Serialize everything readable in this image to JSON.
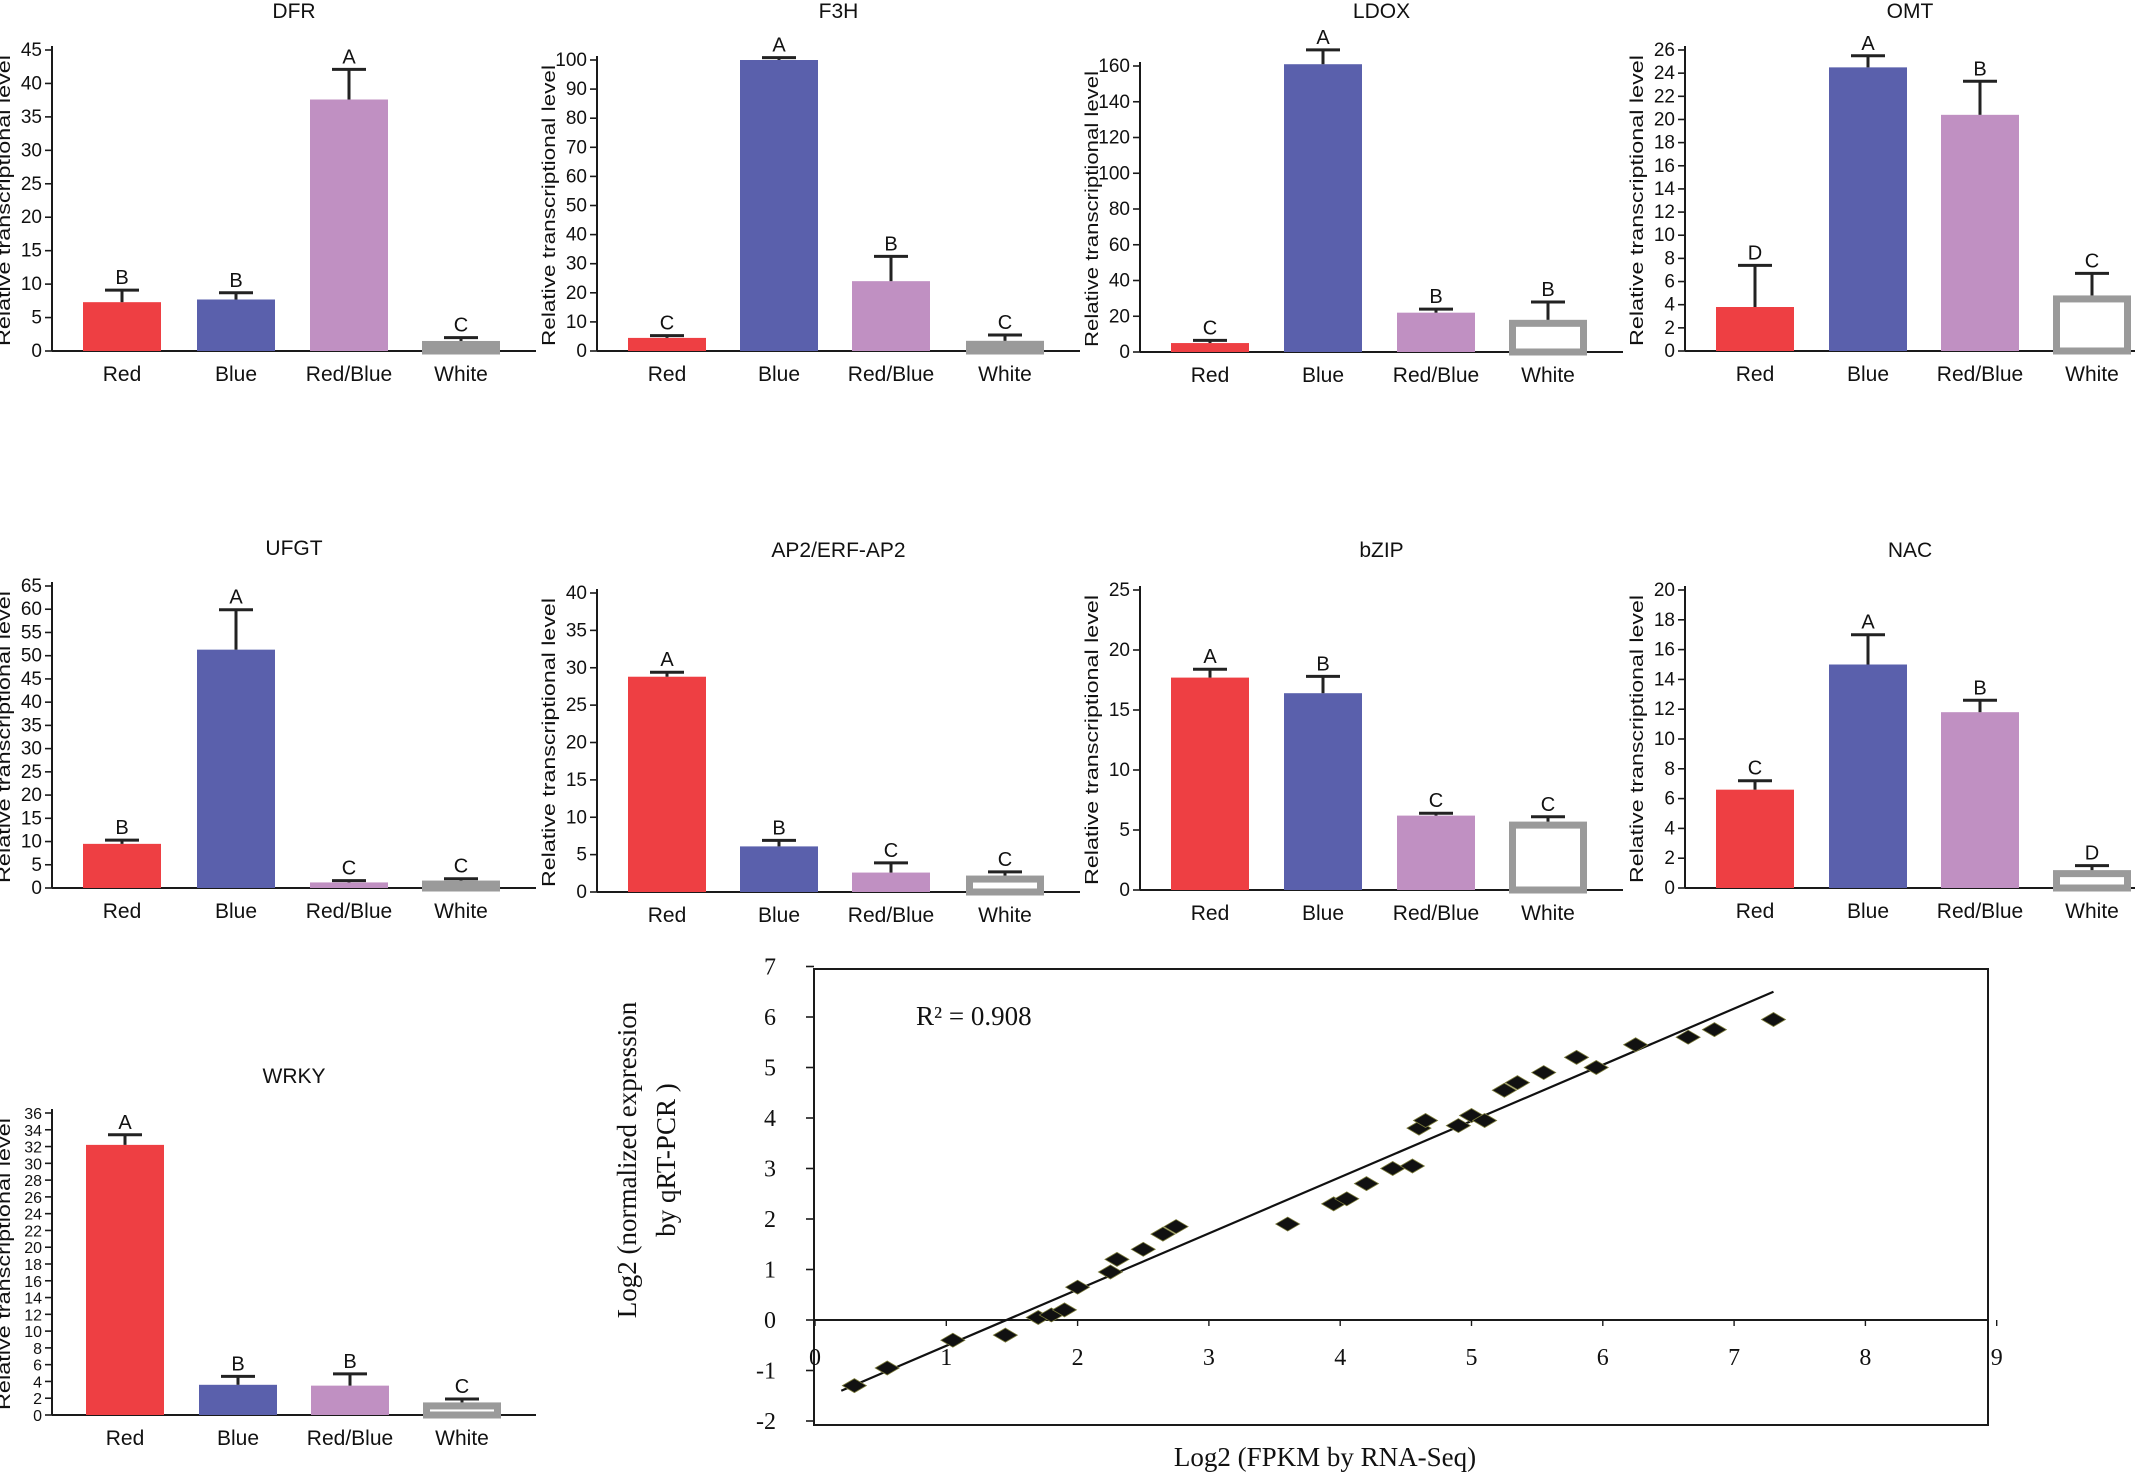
{
  "chart_data": [
    {
      "type": "bar",
      "title": "DFR",
      "ylabel": "Relative transcriptional level",
      "categories": [
        "Red",
        "Blue",
        "Red/Blue",
        "White"
      ],
      "values": [
        7.3,
        7.7,
        37.6,
        1.5
      ],
      "errors": [
        1.8,
        1.0,
        4.5,
        0.5
      ],
      "letters": [
        "B",
        "B",
        "A",
        "C"
      ],
      "ylim": [
        0,
        45
      ],
      "yticks": [
        0,
        5,
        10,
        15,
        20,
        25,
        30,
        35,
        40,
        45
      ]
    },
    {
      "type": "bar",
      "title": "F3H",
      "ylabel": "Relative transcriptional level",
      "categories": [
        "Red",
        "Blue",
        "Red/Blue",
        "White"
      ],
      "values": [
        4.5,
        100,
        24,
        3.5
      ],
      "errors": [
        0.8,
        0.8,
        8.5,
        2.0
      ],
      "letters": [
        "C",
        "A",
        "B",
        "C"
      ],
      "ylim": [
        0,
        105
      ],
      "yticks": [
        0,
        10,
        20,
        30,
        40,
        50,
        60,
        70,
        80,
        90,
        100
      ]
    },
    {
      "type": "bar",
      "title": "LDOX",
      "ylabel": "Relative transcriptional level",
      "categories": [
        "Red",
        "Blue",
        "Red/Blue",
        "White"
      ],
      "values": [
        5,
        161,
        22,
        18
      ],
      "errors": [
        1.5,
        8,
        2,
        10
      ],
      "letters": [
        "C",
        "A",
        "B",
        "B"
      ],
      "ylim": [
        0,
        170
      ],
      "yticks": [
        0,
        20,
        40,
        60,
        80,
        100,
        120,
        140,
        160
      ]
    },
    {
      "type": "bar",
      "title": "OMT",
      "ylabel": "Relative transcriptional level",
      "categories": [
        "Red",
        "Blue",
        "Red/Blue",
        "White"
      ],
      "values": [
        3.8,
        24.5,
        20.4,
        4.8
      ],
      "errors": [
        3.6,
        1.0,
        2.9,
        1.9
      ],
      "letters": [
        "D",
        "A",
        "B",
        "C"
      ],
      "ylim": [
        0,
        26
      ],
      "yticks": [
        0,
        2,
        4,
        6,
        8,
        10,
        12,
        14,
        16,
        18,
        20,
        22,
        24,
        26
      ]
    },
    {
      "type": "bar",
      "title": "UFGT",
      "ylabel": "Relative transcriptional level",
      "categories": [
        "Red",
        "Blue",
        "Red/Blue",
        "White"
      ],
      "values": [
        9.5,
        51.3,
        1.2,
        1.6
      ],
      "errors": [
        0.8,
        8.6,
        0.4,
        0.4
      ],
      "letters": [
        "B",
        "A",
        "C",
        "C"
      ],
      "ylim": [
        0,
        65
      ],
      "yticks": [
        0,
        5,
        10,
        15,
        20,
        25,
        30,
        35,
        40,
        45,
        50,
        55,
        60,
        65
      ]
    },
    {
      "type": "bar",
      "title": "AP2/ERF-AP2",
      "ylabel": "Relative transcriptional level",
      "categories": [
        "Red",
        "Blue",
        "Red/Blue",
        "White"
      ],
      "values": [
        28.8,
        6.1,
        2.6,
        2.2
      ],
      "errors": [
        0.6,
        0.8,
        1.3,
        0.5
      ],
      "letters": [
        "A",
        "B",
        "C",
        "C"
      ],
      "ylim": [
        0,
        40
      ],
      "yticks": [
        0,
        5,
        10,
        15,
        20,
        25,
        30,
        35,
        40
      ]
    },
    {
      "type": "bar",
      "title": "bZIP",
      "ylabel": "Relative transcriptional level",
      "categories": [
        "Red",
        "Blue",
        "Red/Blue",
        "White"
      ],
      "values": [
        17.7,
        16.4,
        6.2,
        5.7
      ],
      "errors": [
        0.7,
        1.4,
        0.2,
        0.4
      ],
      "letters": [
        "A",
        "B",
        "C",
        "C"
      ],
      "ylim": [
        0,
        25
      ],
      "yticks": [
        0,
        5,
        10,
        15,
        20,
        25
      ]
    },
    {
      "type": "bar",
      "title": "NAC",
      "ylabel": "Relative transcriptional level",
      "categories": [
        "Red",
        "Blue",
        "Red/Blue",
        "White"
      ],
      "values": [
        6.6,
        15.0,
        11.8,
        1.2
      ],
      "errors": [
        0.6,
        2.0,
        0.8,
        0.3
      ],
      "letters": [
        "C",
        "A",
        "B",
        "D"
      ],
      "ylim": [
        0,
        20
      ],
      "yticks": [
        0,
        2,
        4,
        6,
        8,
        10,
        12,
        14,
        16,
        18,
        20
      ]
    },
    {
      "type": "bar",
      "title": "WRKY",
      "ylabel": "Relative transcriptional level",
      "categories": [
        "Red",
        "Blue",
        "Red/Blue",
        "White"
      ],
      "values": [
        32.2,
        3.6,
        3.5,
        1.5
      ],
      "errors": [
        1.2,
        1.0,
        1.4,
        0.4
      ],
      "letters": [
        "A",
        "B",
        "B",
        "C"
      ],
      "ylim": [
        0,
        36
      ],
      "yticks": [
        0,
        2,
        4,
        6,
        8,
        10,
        12,
        14,
        16,
        18,
        20,
        22,
        24,
        26,
        28,
        30,
        32,
        34,
        36
      ]
    },
    {
      "type": "scatter",
      "xlabel": "Log2 (FPKM by RNA-Seq)",
      "ylabel": [
        "Log2 (normalized expression",
        "by qRT-PCR )"
      ],
      "annotation": "R² = 0.908",
      "xlim": [
        0,
        9
      ],
      "ylim": [
        -2,
        7
      ],
      "xticks": [
        0,
        1,
        2,
        3,
        4,
        5,
        6,
        7,
        8,
        9
      ],
      "yticks": [
        -2,
        -1,
        0,
        1,
        2,
        3,
        4,
        5,
        6,
        7
      ],
      "trendline": {
        "x": [
          0.2,
          7.3
        ],
        "y": [
          -1.4,
          6.5
        ]
      },
      "points": [
        [
          0.3,
          -1.3
        ],
        [
          0.55,
          -0.95
        ],
        [
          1.05,
          -0.4
        ],
        [
          1.45,
          -0.3
        ],
        [
          1.7,
          0.05
        ],
        [
          1.8,
          0.1
        ],
        [
          1.9,
          0.2
        ],
        [
          2.0,
          0.65
        ],
        [
          2.25,
          0.95
        ],
        [
          2.3,
          1.2
        ],
        [
          2.5,
          1.4
        ],
        [
          2.65,
          1.7
        ],
        [
          2.75,
          1.85
        ],
        [
          3.6,
          1.9
        ],
        [
          3.95,
          2.3
        ],
        [
          4.05,
          2.4
        ],
        [
          4.2,
          2.7
        ],
        [
          4.4,
          3.0
        ],
        [
          4.55,
          3.05
        ],
        [
          4.6,
          3.8
        ],
        [
          4.65,
          3.95
        ],
        [
          4.9,
          3.85
        ],
        [
          5.0,
          4.05
        ],
        [
          5.1,
          3.95
        ],
        [
          5.25,
          4.55
        ],
        [
          5.35,
          4.7
        ],
        [
          5.55,
          4.9
        ],
        [
          5.8,
          5.2
        ],
        [
          5.95,
          5.0
        ],
        [
          6.25,
          5.45
        ],
        [
          6.65,
          5.6
        ],
        [
          6.85,
          5.75
        ],
        [
          7.3,
          5.95
        ]
      ]
    }
  ],
  "colors": {
    "Red": "#ee3f43",
    "Blue": "#5a60ac",
    "Red/Blue": "#c090c2",
    "White_edge": "#9a9a9a",
    "axis": "#1a1a1a",
    "marker": "#111111"
  }
}
